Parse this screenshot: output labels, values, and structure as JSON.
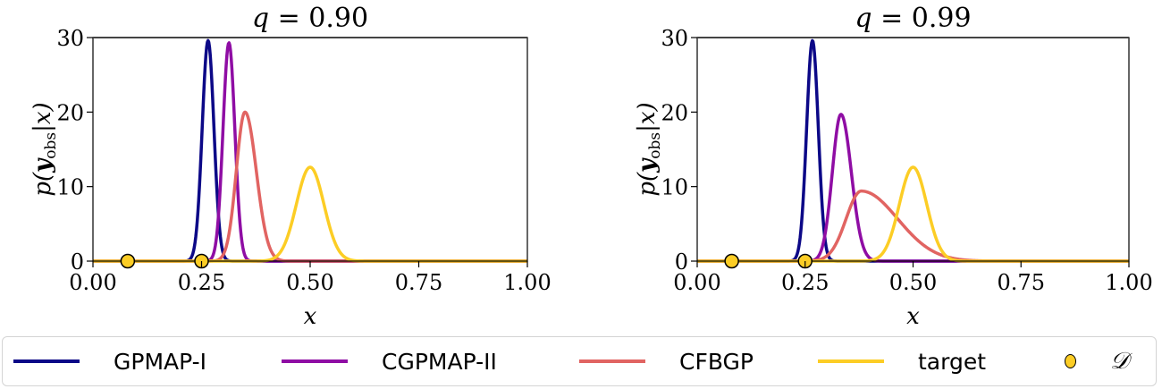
{
  "colors": {
    "GPMAP-I": "#0c0887",
    "CGPMAP-II": "#8f0da4",
    "CFBGP": "#e16462",
    "target": "#fccd25",
    "data_marker_fill": "#fccd25",
    "data_marker_edge": "#000000",
    "axis": "#000000",
    "legend_border": "#d4d4d4"
  },
  "legend": {
    "items": [
      {
        "label": "GPMAP-I",
        "type": "line",
        "color": "#0c0887"
      },
      {
        "label": "CGPMAP-II",
        "type": "line",
        "color": "#8f0da4"
      },
      {
        "label": "CFBGP",
        "type": "line",
        "color": "#e16462"
      },
      {
        "label": "target",
        "type": "line",
        "color": "#fccd25"
      },
      {
        "label": "𝒟",
        "type": "marker",
        "color": "#fccd25"
      }
    ]
  },
  "chart_data": [
    {
      "type": "line",
      "title": "q = 0.90",
      "xlabel": "x",
      "ylabel": "p(y_obs|x)",
      "xlim": [
        0.0,
        1.0
      ],
      "ylim": [
        0,
        30
      ],
      "xticks": [
        "0.00",
        "0.25",
        "0.50",
        "0.75",
        "1.00"
      ],
      "yticks": [
        "0",
        "10",
        "20",
        "30"
      ],
      "grid": false,
      "legend_position": "below (shared)",
      "series": [
        {
          "name": "GPMAP-I",
          "shape": "gaussian",
          "peak_x": 0.265,
          "peak_y": 29.6,
          "sigma": 0.0135,
          "skew": 0
        },
        {
          "name": "CGPMAP-II",
          "shape": "gaussian",
          "peak_x": 0.313,
          "peak_y": 29.3,
          "sigma": 0.0136,
          "skew": 0
        },
        {
          "name": "CFBGP",
          "shape": "gaussian",
          "peak_x": 0.35,
          "peak_y": 20.0,
          "sigma": 0.02,
          "skew": 0.3
        },
        {
          "name": "target",
          "shape": "gaussian",
          "peak_x": 0.5,
          "peak_y": 12.6,
          "sigma": 0.0317,
          "skew": 0
        }
      ],
      "points": {
        "name": "𝒟",
        "x": [
          0.08,
          0.25
        ],
        "y": [
          0,
          0
        ]
      }
    },
    {
      "type": "line",
      "title": "q = 0.99",
      "xlabel": "x",
      "ylabel": "p(y_obs|x)",
      "xlim": [
        0.0,
        1.0
      ],
      "ylim": [
        0,
        30
      ],
      "xticks": [
        "0.00",
        "0.25",
        "0.50",
        "0.75",
        "1.00"
      ],
      "yticks": [
        "0",
        "10",
        "20",
        "30"
      ],
      "grid": false,
      "legend_position": "below (shared)",
      "series": [
        {
          "name": "GPMAP-I",
          "shape": "gaussian",
          "peak_x": 0.267,
          "peak_y": 29.6,
          "sigma": 0.0135,
          "skew": 0
        },
        {
          "name": "CGPMAP-II",
          "shape": "gaussian",
          "peak_x": 0.333,
          "peak_y": 19.7,
          "sigma": 0.02,
          "skew": 0.2
        },
        {
          "name": "CFBGP",
          "shape": "gaussian",
          "peak_x": 0.38,
          "peak_y": 9.4,
          "sigma": 0.035,
          "skew": 1.4
        },
        {
          "name": "target",
          "shape": "gaussian",
          "peak_x": 0.5,
          "peak_y": 12.6,
          "sigma": 0.0317,
          "skew": 0
        }
      ],
      "points": {
        "name": "𝒟",
        "x": [
          0.08,
          0.25
        ],
        "y": [
          0,
          0
        ]
      }
    }
  ],
  "panels": [
    {
      "title_q": "q",
      "title_eq": " = 0.90",
      "xlabel": "x",
      "ylabel_main": "p(",
      "ylabel_bold": "y",
      "ylabel_sub": "obs",
      "ylabel_end": "|x)"
    },
    {
      "title_q": "q",
      "title_eq": " = 0.99",
      "xlabel": "x",
      "ylabel_main": "p(",
      "ylabel_bold": "y",
      "ylabel_sub": "obs",
      "ylabel_end": "|x)"
    }
  ]
}
